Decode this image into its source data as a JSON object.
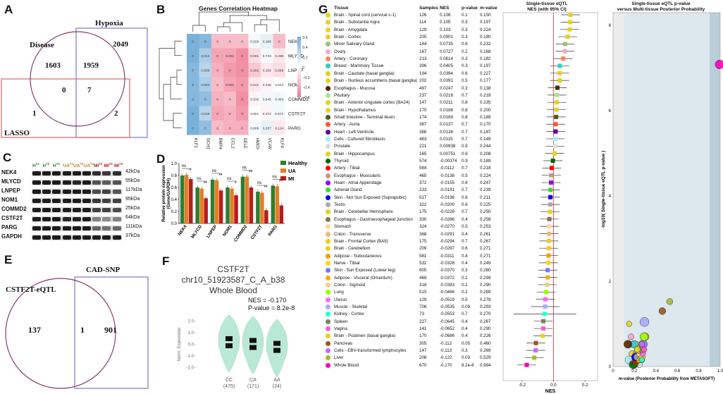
{
  "panels": {
    "A": {
      "label": "A",
      "sets": [
        "Disease",
        "Hypoxia",
        "LASSO"
      ],
      "counts": {
        "disease_only": "1603",
        "disease_hypoxia": "1959",
        "hypoxia_only": "2049",
        "disease_lasso": "0",
        "all_three": "7",
        "lasso_only": "1",
        "hypoxia_lasso": "2"
      }
    },
    "B": {
      "label": "B",
      "title": "Genes Correlation Heatmap",
      "rows": [
        "NEK4",
        "MLYCD",
        "LNPEP",
        "NOM1",
        "COMMD2",
        "CSTF2T",
        "PARG"
      ],
      "cols": [
        "KLF2",
        "GCH1",
        "BMP4",
        "CCL2",
        "SELE",
        "HMOX1",
        "VCAM1",
        "KLF4"
      ],
      "values": [
        [
          "0",
          "0",
          "0",
          "0",
          "0",
          "0.029",
          "0.296",
          "0"
        ],
        [
          "0",
          "0.012",
          "0",
          "0.001",
          "0",
          "0.061",
          "0.743",
          "0.285"
        ],
        [
          "0",
          "0.009",
          "0",
          "0",
          "0",
          "0.001",
          "0.258",
          "0.099"
        ],
        [
          "0",
          "0.004",
          "0",
          "0.001",
          "0",
          "0.042",
          "0.346",
          "0.813"
        ],
        [
          "0",
          "0",
          "0",
          "0",
          "0",
          "0.536",
          "0.645",
          "0.493"
        ],
        [
          "0",
          "0.019",
          "0",
          "0",
          "0",
          "0.801",
          "0.372",
          "0.571"
        ],
        [
          "0",
          "0",
          "0",
          "0",
          "0",
          "0.609",
          "0.287",
          "0.124"
        ]
      ],
      "colors": [
        [
          0.55,
          0.5,
          -0.3,
          -0.3,
          -0.3,
          0.05,
          0.1,
          -0.3
        ],
        [
          0.55,
          0.35,
          -0.4,
          -0.4,
          -0.5,
          -0.15,
          0.05,
          -0.1
        ],
        [
          0.5,
          0.3,
          -0.35,
          -0.45,
          -0.5,
          -0.25,
          -0.1,
          -0.15
        ],
        [
          0.5,
          0.35,
          -0.3,
          -0.4,
          -0.45,
          -0.1,
          -0.05,
          0.0
        ],
        [
          0.5,
          0.45,
          -0.35,
          -0.3,
          -0.5,
          -0.05,
          0.05,
          0.05
        ],
        [
          0.55,
          0.3,
          -0.4,
          -0.35,
          -0.45,
          0.0,
          -0.05,
          0.05
        ],
        [
          0.55,
          0.45,
          -0.3,
          -0.35,
          -0.35,
          0.05,
          0.1,
          -0.1
        ]
      ],
      "scale_ticks": [
        "0.6",
        "0.4",
        "0.2",
        "0",
        "−0.2",
        "−0.4",
        "−0.6"
      ]
    },
    "C": {
      "label": "C",
      "lanes": [
        {
          "text": "H",
          "sup": "#1",
          "color": "#2e7d32"
        },
        {
          "text": "H",
          "sup": "#2",
          "color": "#2e7d32"
        },
        {
          "text": "H",
          "sup": "#3",
          "color": "#2e7d32"
        },
        {
          "text": "UA",
          "sup": "#1",
          "color": "#c77c0e"
        },
        {
          "text": "UA",
          "sup": "#2",
          "color": "#c77c0e"
        },
        {
          "text": "UA",
          "sup": "#3",
          "color": "#c77c0e"
        },
        {
          "text": "MI",
          "sup": "#1",
          "color": "#b71c1c"
        },
        {
          "text": "MI",
          "sup": "#2",
          "color": "#b71c1c"
        },
        {
          "text": "MI",
          "sup": "#3",
          "color": "#b71c1c"
        }
      ],
      "rows": [
        {
          "name": "NEK4",
          "kda": "42kDa"
        },
        {
          "name": "MLYCD",
          "kda": "55kDa"
        },
        {
          "name": "LNPEP",
          "kda": "117kDa"
        },
        {
          "name": "NOM1",
          "kda": "95kDa"
        },
        {
          "name": "COMMD2",
          "kda": "25kDa"
        },
        {
          "name": "CSTF2T",
          "kda": "64kDa"
        },
        {
          "name": "PARG",
          "kda": "111kDa"
        },
        {
          "name": "GAPDH",
          "kda": "37kDa"
        }
      ]
    },
    "D": {
      "label": "D",
      "chart_data": {
        "type": "bar",
        "ylabel": "Relative protein expression (Gene/GAPDH)",
        "ylim": [
          0,
          1.0
        ],
        "yticks": [
          "0.0",
          "0.2",
          "0.4",
          "0.6",
          "0.8",
          "1.0"
        ],
        "categories": [
          "NEK4",
          "MLYCD",
          "LNPEP",
          "NOM1",
          "COMMD2",
          "CSTF2T",
          "PARG"
        ],
        "series": [
          {
            "name": "Healthy",
            "color": "#2e7d32",
            "values": [
              0.8,
              0.6,
              0.73,
              0.6,
              0.78,
              0.53,
              0.63
            ]
          },
          {
            "name": "UA",
            "color": "#e67e22",
            "values": [
              0.81,
              0.58,
              0.72,
              0.58,
              0.78,
              0.51,
              0.62
            ]
          },
          {
            "name": "MI",
            "color": "#b71c1c",
            "values": [
              0.74,
              0.42,
              0.55,
              0.47,
              0.6,
              0.22,
              0.3
            ]
          }
        ],
        "sig_top": [
          "ns",
          "ns",
          "ns",
          "ns",
          "ns",
          "ns",
          "ns"
        ],
        "sig_pair": [
          "*",
          "**",
          "**",
          "*",
          "**",
          "**",
          "**"
        ]
      }
    },
    "E": {
      "label": "E",
      "sets": [
        "CSTF2T-eQTL",
        "CAD-SNP"
      ],
      "counts": {
        "left_only": "137",
        "both": "1",
        "right_only": "901"
      }
    },
    "F": {
      "label": "F",
      "title": [
        "CSTF2T",
        "chr10_51923587_C_A_b38",
        "Whole Blood"
      ],
      "nes": "NES = -0.170",
      "pvalue": "P-value = 8.2e-8",
      "ylabel": "Norm. Expression",
      "yticks": [
        "2.0",
        "1.0",
        "0.0",
        "-1.0",
        "-2.0"
      ],
      "groups": [
        {
          "name": "CC",
          "n": "(475)",
          "median": 0.15
        },
        {
          "name": "CA",
          "n": "(171)",
          "median": 0.0
        },
        {
          "name": "AA",
          "n": "(24)",
          "median": -0.25
        }
      ]
    },
    "G": {
      "label": "G",
      "headers": {
        "tissue": "Tissue",
        "samples": "Samples",
        "nes": "NES",
        "pvalue": "p-value",
        "mvalue": "m-value"
      },
      "forest_title": [
        "Single-tissue eQTL",
        "NES (with 95% CI)"
      ],
      "forest_xlabel": "NES",
      "forest_xticks": [
        "-0.2",
        "0.0",
        "0.2"
      ],
      "scatter_title": [
        "Single-tissue eQTL p-value",
        "versus Multi-tissue Posterior Probability"
      ],
      "scatter_xlabel": "m-value (Posterior Probability from METASOFT)",
      "scatter_ylabel": "-log10( Single-tissue eQTL p-value )",
      "scatter_xticks": [
        "0",
        "0.2",
        "0.4",
        "0.6",
        "0.8",
        "1.0"
      ],
      "scatter_yticks": [
        "0",
        "2",
        "4",
        "6",
        "8"
      ],
      "tissues": [
        {
          "name": "Brain - Spinal cord (cervical c-1)",
          "samples": "126",
          "nes": "0.108",
          "p": "0.1",
          "m": "0.150",
          "color": "#e6d21a"
        },
        {
          "name": "Brain - Substantia nigra",
          "samples": "114",
          "nes": "0.105",
          "p": "0.3",
          "m": "0.197",
          "color": "#e6d21a"
        },
        {
          "name": "Brain - Amygdala",
          "samples": "129",
          "nes": "0.103",
          "p": "0.3",
          "m": "0.224",
          "color": "#e6d21a"
        },
        {
          "name": "Brain - Cortex",
          "samples": "205",
          "nes": "0.0901",
          "p": "0.3",
          "m": "0.180",
          "color": "#e6d21a"
        },
        {
          "name": "Minor Salivary Gland",
          "samples": "144",
          "nes": "0.0735",
          "p": "0.6",
          "m": "0.232",
          "color": "#9bbf85"
        },
        {
          "name": "Ovary",
          "samples": "167",
          "nes": "0.0727",
          "p": "0.2",
          "m": "0.168",
          "color": "#f4a8c8"
        },
        {
          "name": "Artery - Coronary",
          "samples": "213",
          "nes": "0.0614",
          "p": "0.3",
          "m": "0.182",
          "color": "#ff8060"
        },
        {
          "name": "Breast - Mammary Tissue",
          "samples": "396",
          "nes": "0.0405",
          "p": "0.3",
          "m": "0.197",
          "color": "#33cccc"
        },
        {
          "name": "Brain - Caudate (basal ganglia)",
          "samples": "194",
          "nes": "0.0394",
          "p": "0.6",
          "m": "0.227",
          "color": "#e6d21a"
        },
        {
          "name": "Brain - Nucleus accumbens (basal ganglia)",
          "samples": "202",
          "nes": "0.0391",
          "p": "0.5",
          "m": "0.177",
          "color": "#e6d21a"
        },
        {
          "name": "Esophagus - Mucosa",
          "samples": "497",
          "nes": "0.0247",
          "p": "0.3",
          "m": "0.138",
          "color": "#552200"
        },
        {
          "name": "Pituitary",
          "samples": "237",
          "nes": "0.0218",
          "p": "0.7",
          "m": "0.218",
          "color": "#a8e68c"
        },
        {
          "name": "Brain - Anterior cingulate cortex (BA24)",
          "samples": "147",
          "nes": "0.0211",
          "p": "0.8",
          "m": "0.235",
          "color": "#e6d21a"
        },
        {
          "name": "Brain - Hypothalamus",
          "samples": "170",
          "nes": "0.0188",
          "p": "0.8",
          "m": "0.200",
          "color": "#e6d21a"
        },
        {
          "name": "Small Intestine - Terminal Ileum",
          "samples": "174",
          "nes": "0.0169",
          "p": "0.8",
          "m": "0.189",
          "color": "#555522"
        },
        {
          "name": "Artery - Aorta",
          "samples": "387",
          "nes": "0.0137",
          "p": "0.7",
          "m": "0.170",
          "color": "#ff5533"
        },
        {
          "name": "Heart - Left Ventricle",
          "samples": "386",
          "nes": "0.0136",
          "p": "0.7",
          "m": "0.187",
          "color": "#660099"
        },
        {
          "name": "Cells - Cultured fibroblasts",
          "samples": "483",
          "nes": "0.0115",
          "p": "0.7",
          "m": "0.149",
          "color": "#aaeeff"
        },
        {
          "name": "Prostate",
          "samples": "221",
          "nes": "0.00938",
          "p": "0.9",
          "m": "0.244",
          "color": "#dddddd"
        },
        {
          "name": "Brain - Hippocampus",
          "samples": "165",
          "nes": "0.00751",
          "p": "0.9",
          "m": "0.208",
          "color": "#e6d21a"
        },
        {
          "name": "Thyroid",
          "samples": "574",
          "nes": "-0.00374",
          "p": "0.9",
          "m": "0.189",
          "color": "#006600"
        },
        {
          "name": "Artery - Tibial",
          "samples": "584",
          "nes": "-0.0112",
          "p": "0.7",
          "m": "0.218",
          "color": "#ff0000"
        },
        {
          "name": "Esophagus - Muscularis",
          "samples": "465",
          "nes": "-0.0138",
          "p": "0.5",
          "m": "0.224",
          "color": "#bb9988"
        },
        {
          "name": "Heart - Atrial Appendage",
          "samples": "372",
          "nes": "-0.0155",
          "p": "0.6",
          "m": "0.247",
          "color": "#9900ff"
        },
        {
          "name": "Adrenal Gland",
          "samples": "233",
          "nes": "-0.0191",
          "p": "0.7",
          "m": "0.239",
          "color": "#33dd33"
        },
        {
          "name": "Skin - Not Sun Exposed (Suprapubic)",
          "samples": "517",
          "nes": "-0.0196",
          "p": "0.6",
          "m": "0.211",
          "color": "#0000ff"
        },
        {
          "name": "Testis",
          "samples": "322",
          "nes": "-0.0200",
          "p": "0.6",
          "m": "0.225",
          "color": "#aaaaaa"
        },
        {
          "name": "Brain - Cerebellar Hemisphere",
          "samples": "175",
          "nes": "-0.0226",
          "p": "0.7",
          "m": "0.250",
          "color": "#e6d21a"
        },
        {
          "name": "Esophagus - Gastroesophageal Junction",
          "samples": "330",
          "nes": "-0.0266",
          "p": "0.4",
          "m": "0.258",
          "color": "#8b7355"
        },
        {
          "name": "Stomach",
          "samples": "324",
          "nes": "-0.0270",
          "p": "0.5",
          "m": "0.253",
          "color": "#ffd79b"
        },
        {
          "name": "Colon - Transverse",
          "samples": "368",
          "nes": "-0.0291",
          "p": "0.4",
          "m": "0.261",
          "color": "#eebb77"
        },
        {
          "name": "Brain - Frontal Cortex (BA9)",
          "samples": "175",
          "nes": "-0.0294",
          "p": "0.7",
          "m": "0.267",
          "color": "#e6d21a"
        },
        {
          "name": "Brain - Cerebellum",
          "samples": "209",
          "nes": "-0.0297",
          "p": "0.6",
          "m": "0.271",
          "color": "#e6d21a"
        },
        {
          "name": "Adipose - Subcutaneous",
          "samples": "581",
          "nes": "-0.0311",
          "p": "0.4",
          "m": "0.271",
          "color": "#ff9900"
        },
        {
          "name": "Nerve - Tibial",
          "samples": "532",
          "nes": "-0.0328",
          "p": "0.4",
          "m": "0.249",
          "color": "#ffd700"
        },
        {
          "name": "Skin - Sun Exposed (Lower leg)",
          "samples": "605",
          "nes": "-0.0370",
          "p": "0.3",
          "m": "0.280",
          "color": "#7777ff"
        },
        {
          "name": "Adipose - Visceral (Omentum)",
          "samples": "469",
          "nes": "-0.0372",
          "p": "0.2",
          "m": "0.299",
          "color": "#ffaa00"
        },
        {
          "name": "Colon - Sigmoid",
          "samples": "318",
          "nes": "-0.0393",
          "p": "0.2",
          "m": "0.290",
          "color": "#eecc99"
        },
        {
          "name": "Lung",
          "samples": "515",
          "nes": "-0.0466",
          "p": "0.2",
          "m": "0.289",
          "color": "#99ff00"
        },
        {
          "name": "Uterus",
          "samples": "129",
          "nes": "-0.0519",
          "p": "0.5",
          "m": "0.278",
          "color": "#ff66ff"
        },
        {
          "name": "Muscle - Skeletal",
          "samples": "706",
          "nes": "-0.0535",
          "p": "0.09",
          "m": "0.293",
          "color": "#aaaaff"
        },
        {
          "name": "Kidney - Cortex",
          "samples": "73",
          "nes": "-0.0553",
          "p": "0.7",
          "m": "0.270",
          "color": "#22ffdd"
        },
        {
          "name": "Spleen",
          "samples": "227",
          "nes": "-0.0645",
          "p": "0.4",
          "m": "0.267",
          "color": "#778855"
        },
        {
          "name": "Vagina",
          "samples": "141",
          "nes": "-0.0652",
          "p": "0.4",
          "m": "0.290",
          "color": "#ff5ccc"
        },
        {
          "name": "Brain - Putamen (basal ganglia)",
          "samples": "170",
          "nes": "-0.0686",
          "p": "0.4",
          "m": "0.226",
          "color": "#e6d21a"
        },
        {
          "name": "Pancreas",
          "samples": "305",
          "nes": "-0.112",
          "p": "0.05",
          "m": "0.460",
          "color": "#995522"
        },
        {
          "name": "Cells - EBV-transformed lymphocytes",
          "samples": "147",
          "nes": "-0.113",
          "p": "0.3",
          "m": "0.269",
          "color": "#cc66ff"
        },
        {
          "name": "Liver",
          "samples": "208",
          "nes": "-0.122",
          "p": "0.03",
          "m": "0.529",
          "color": "#aabb22"
        },
        {
          "name": "Whole Blood",
          "samples": "670",
          "nes": "-0.170",
          "p": "8.2e-8",
          "m": "0.994",
          "color": "#ff00bb"
        }
      ]
    }
  }
}
